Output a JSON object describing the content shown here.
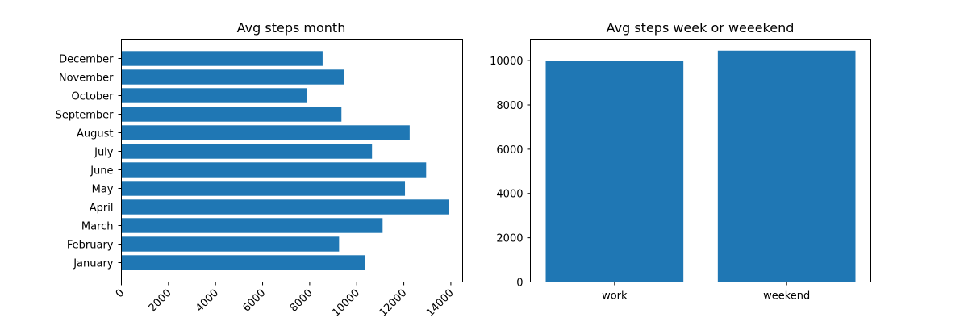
{
  "figure": {
    "background": "#ffffff",
    "bar_color": "#1f77b4"
  },
  "chart_data": [
    {
      "type": "bar",
      "orientation": "horizontal",
      "title": "Avg steps month",
      "xlabel": "",
      "ylabel": "",
      "categories": [
        "January",
        "February",
        "March",
        "April",
        "May",
        "June",
        "July",
        "August",
        "September",
        "October",
        "November",
        "December"
      ],
      "values": [
        10350,
        9250,
        11100,
        13900,
        12050,
        12950,
        10650,
        12250,
        9350,
        7900,
        9450,
        8550
      ],
      "xlim": [
        0,
        14500
      ],
      "xticks": [
        0,
        2000,
        4000,
        6000,
        8000,
        10000,
        12000,
        14000
      ],
      "xtick_labels": [
        "0",
        "2000",
        "4000",
        "6000",
        "8000",
        "10000",
        "12000",
        "14000"
      ],
      "xtick_rotation": 45,
      "grid": false,
      "color": "#1f77b4"
    },
    {
      "type": "bar",
      "orientation": "vertical",
      "title": "Avg steps week or weeekend",
      "xlabel": "",
      "ylabel": "",
      "categories": [
        "work",
        "weekend"
      ],
      "values": [
        10000,
        10450
      ],
      "ylim": [
        0,
        10970
      ],
      "yticks": [
        0,
        2000,
        4000,
        6000,
        8000,
        10000
      ],
      "ytick_labels": [
        "0",
        "2000",
        "4000",
        "6000",
        "8000",
        "10000"
      ],
      "grid": false,
      "color": "#1f77b4"
    }
  ]
}
